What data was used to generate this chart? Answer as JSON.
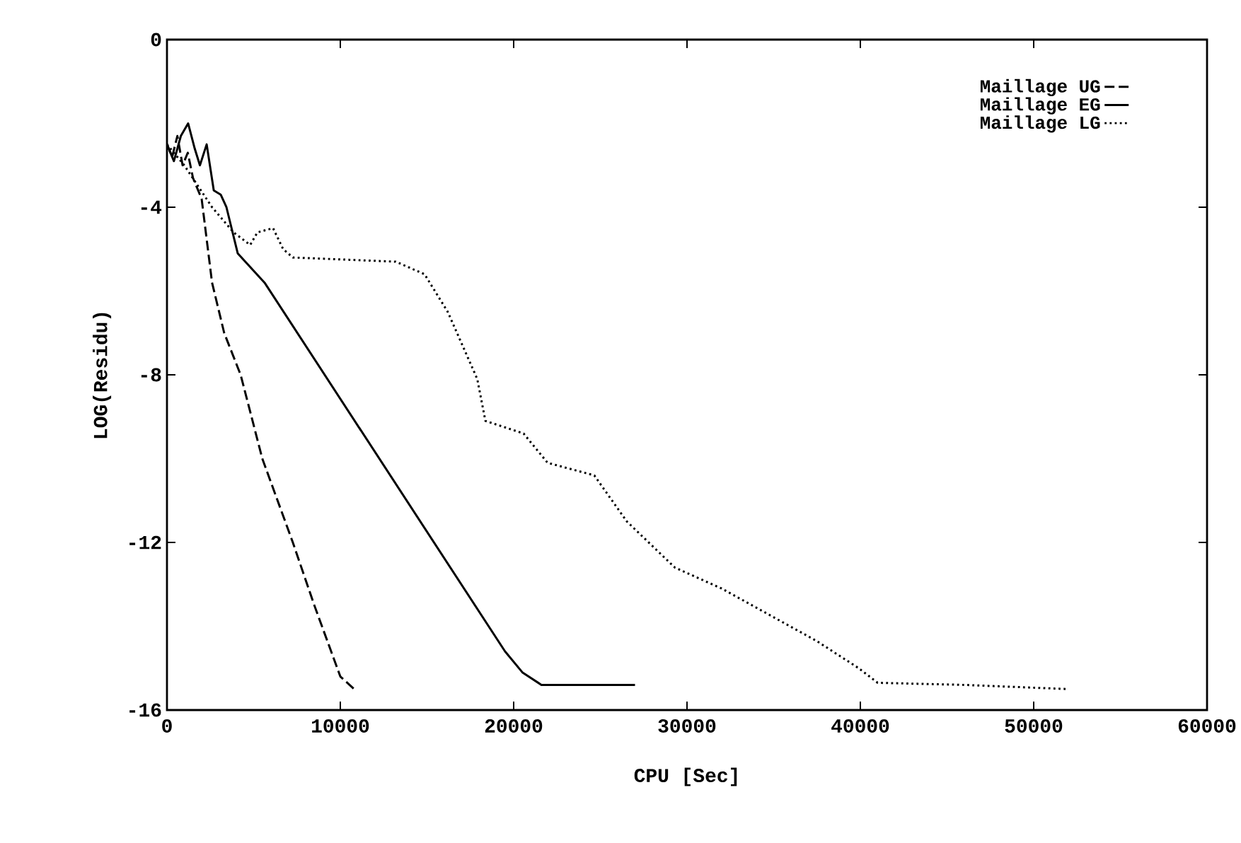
{
  "chart_data": {
    "type": "line",
    "xlabel": "CPU [Sec]",
    "ylabel": "LOG(Residu)",
    "xlim": [
      0,
      60000
    ],
    "xticks": [
      0,
      10000,
      20000,
      30000,
      40000,
      50000,
      60000
    ],
    "ylim": [
      -16,
      0
    ],
    "yticks": [
      -16,
      -12,
      -8,
      -4,
      0
    ],
    "legend": "top right",
    "grid": false,
    "marker": "none",
    "series": [
      {
        "name": "Maillage UG",
        "color": "#000000",
        "line_style": "dashed",
        "x": [
          0,
          300,
          600,
          900,
          1200,
          1500,
          2000,
          2600,
          3300,
          4250,
          5500,
          7260,
          8500,
          10000,
          10800
        ],
        "values": [
          -2.5,
          -2.8,
          -2.3,
          -3.0,
          -2.7,
          -3.3,
          -3.8,
          -5.8,
          -7.0,
          -8.0,
          -10.0,
          -12.0,
          -13.5,
          -15.2,
          -15.5
        ]
      },
      {
        "name": "Maillage EG",
        "color": "#000000",
        "line_style": "solid",
        "x": [
          0,
          400,
          800,
          1220,
          1600,
          1900,
          2290,
          2700,
          3100,
          3430,
          4080,
          5630,
          19500,
          20500,
          21600,
          24000,
          27000
        ],
        "values": [
          -2.5,
          -2.9,
          -2.3,
          -2.0,
          -2.6,
          -3.0,
          -2.5,
          -3.6,
          -3.7,
          -4.0,
          -5.1,
          -5.8,
          -14.6,
          -15.1,
          -15.4,
          -15.4,
          -15.4
        ]
      },
      {
        "name": "Maillage LG",
        "color": "#000000",
        "line_style": "dotted",
        "x": [
          0,
          1000,
          1800,
          2600,
          3840,
          4800,
          5220,
          6120,
          6700,
          7260,
          13200,
          14860,
          16200,
          17900,
          18370,
          20570,
          21960,
          24650,
          26530,
          29300,
          32000,
          37470,
          39900,
          41000,
          46000,
          52000
        ],
        "values": [
          -2.5,
          -3.0,
          -3.5,
          -4.0,
          -4.6,
          -4.9,
          -4.6,
          -4.5,
          -5.0,
          -5.2,
          -5.3,
          -5.6,
          -6.5,
          -8.1,
          -9.1,
          -9.4,
          -10.1,
          -10.4,
          -11.5,
          -12.6,
          -13.1,
          -14.35,
          -15.0,
          -15.35,
          -15.4,
          -15.5
        ]
      }
    ]
  }
}
